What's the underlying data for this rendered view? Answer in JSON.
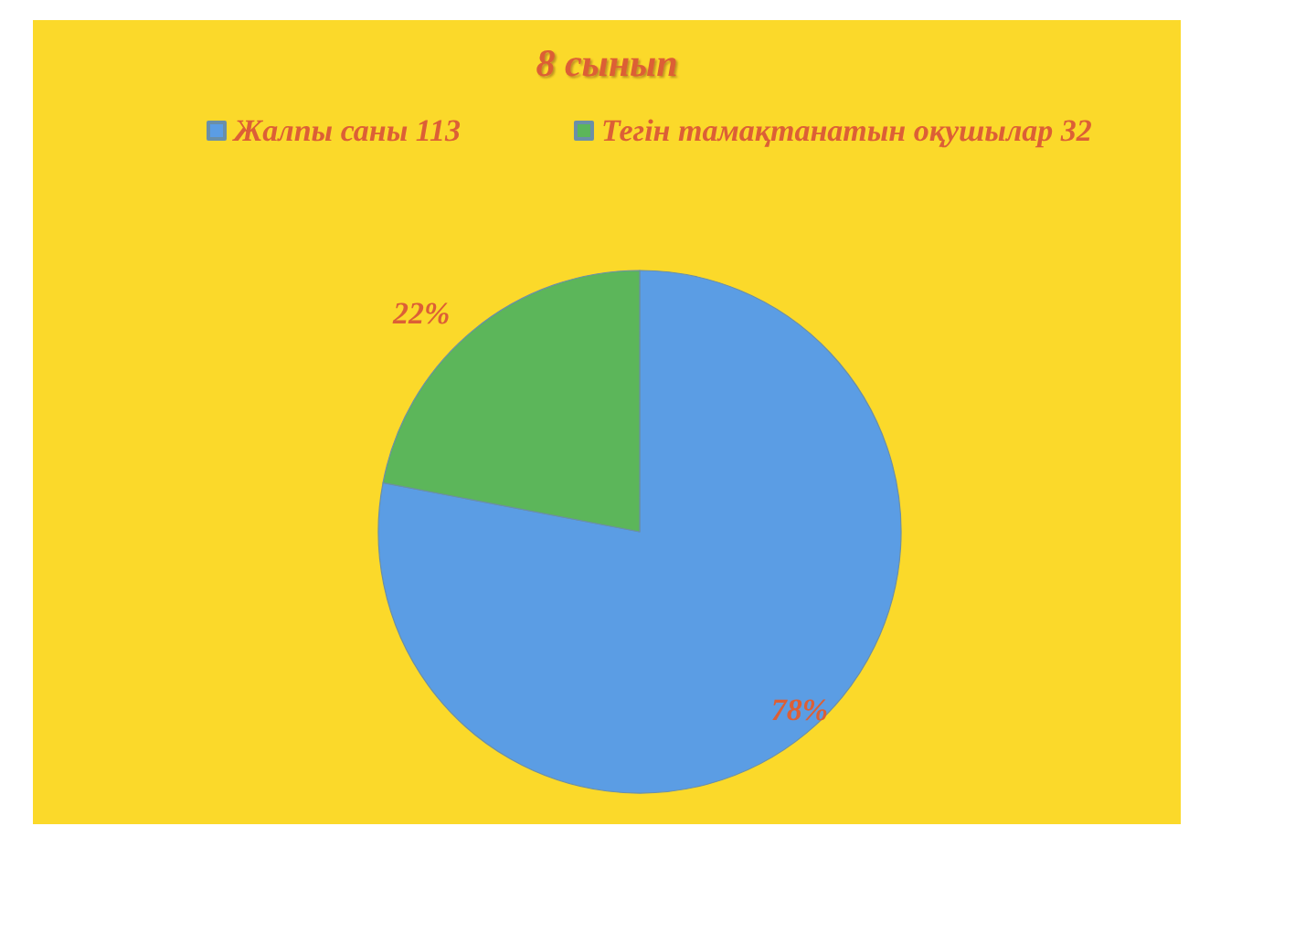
{
  "chart_data": {
    "type": "pie",
    "title": "8 сынып",
    "categories": [
      "Жалпы саны 113",
      "Тегін тамақтанатын оқушылар 32"
    ],
    "values": [
      78,
      22
    ],
    "colors": [
      "#5b9de4",
      "#5cb65a"
    ],
    "value_labels": [
      "78%",
      "22%"
    ],
    "legend": "top"
  }
}
